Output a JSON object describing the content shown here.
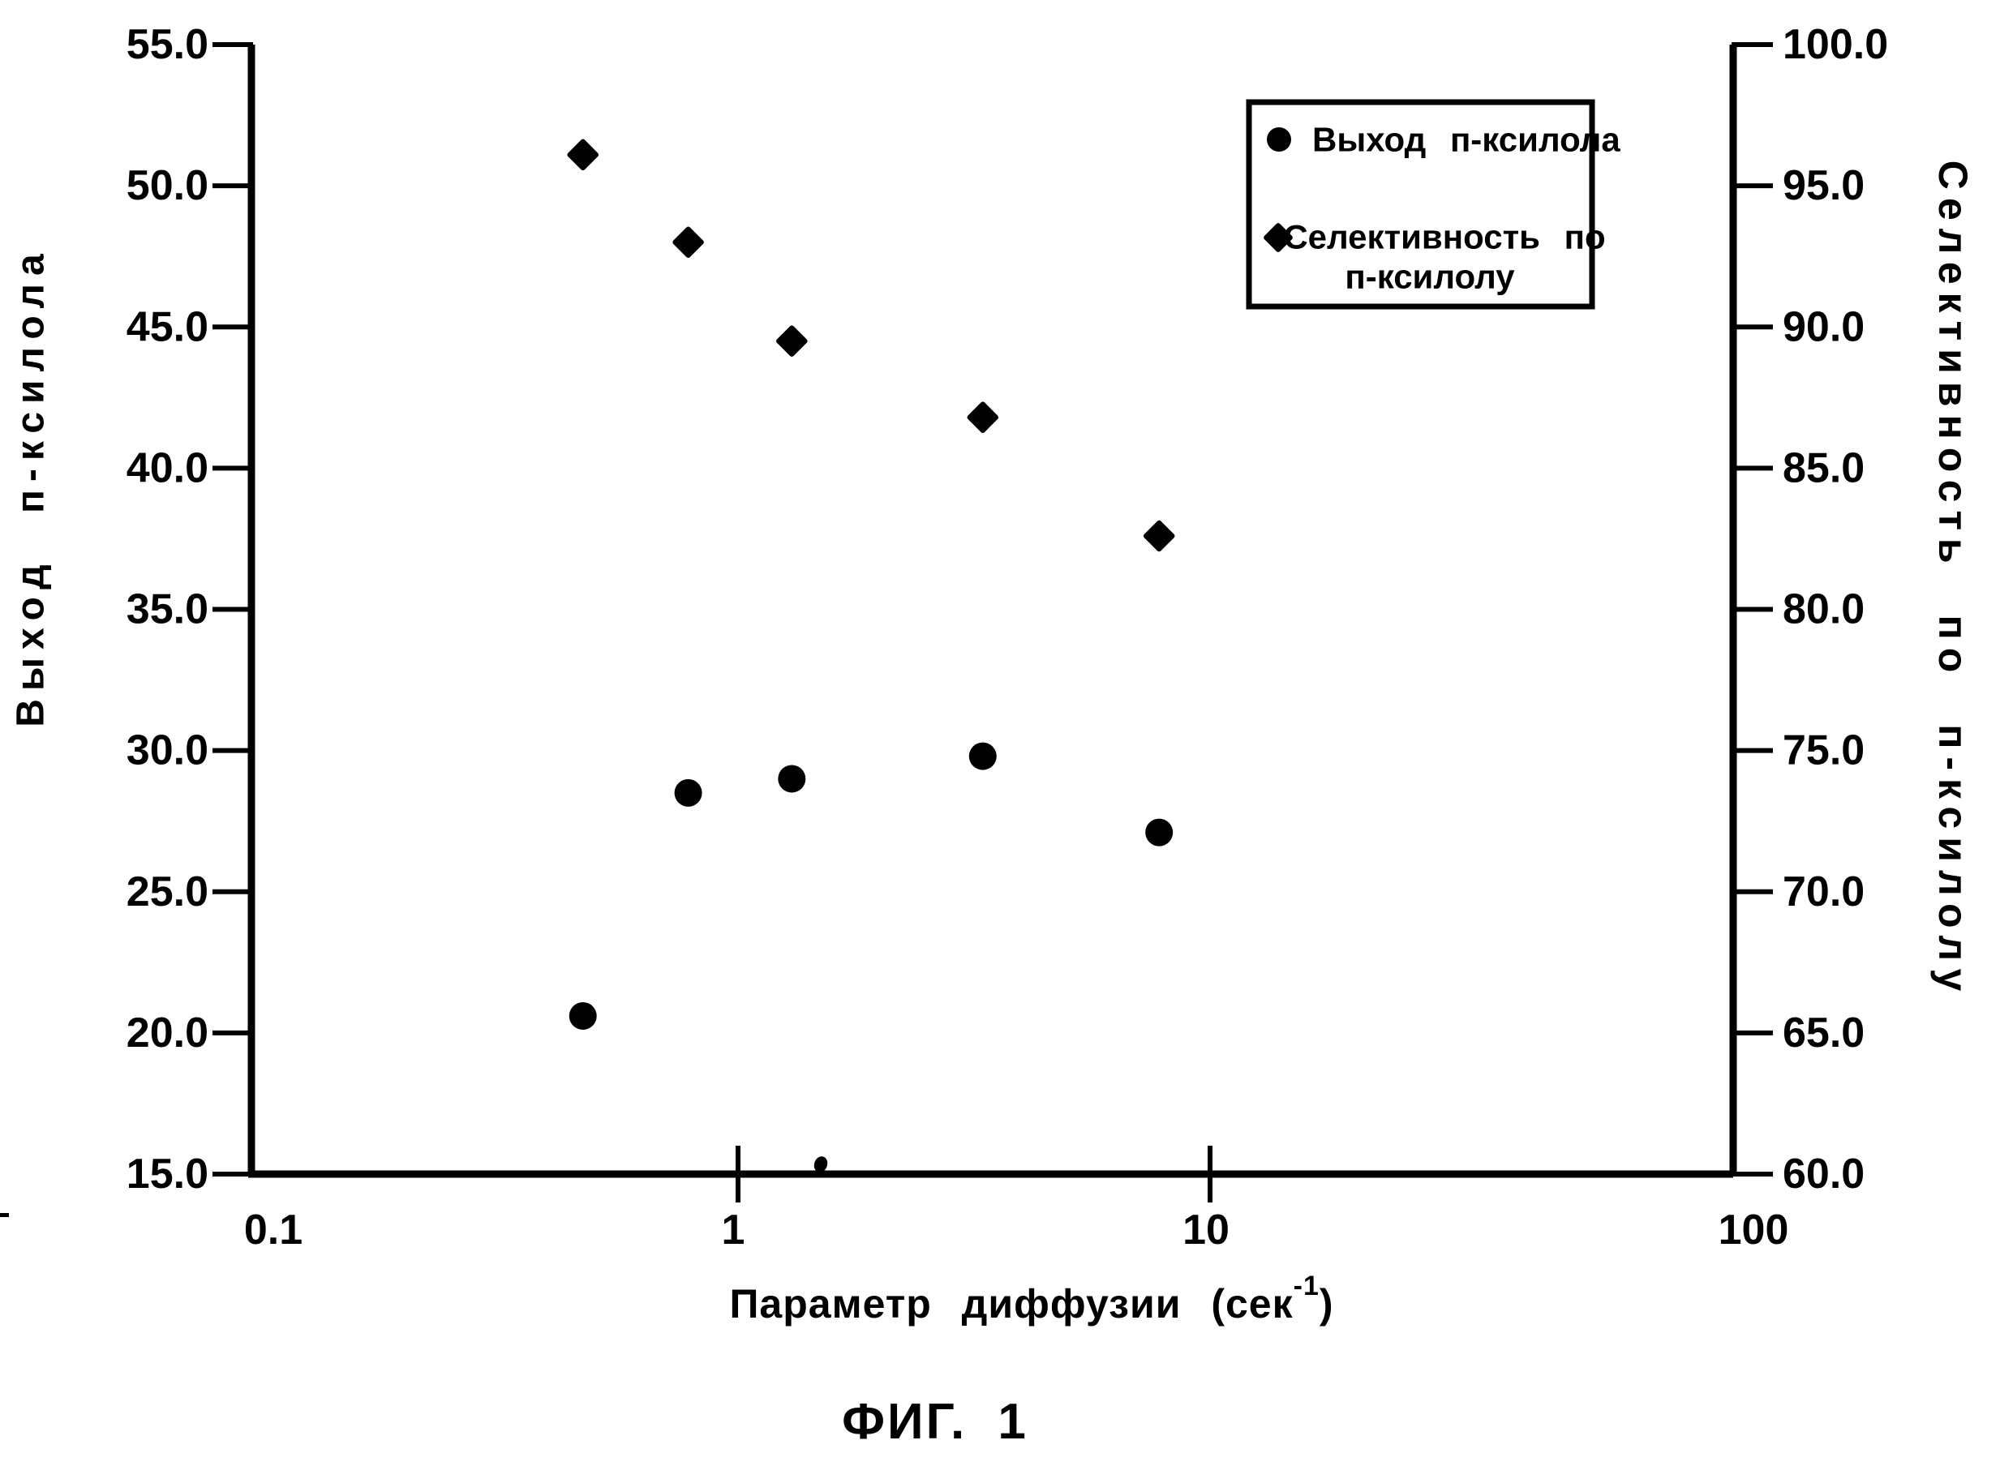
{
  "figure": {
    "caption": "ФИГ. 1",
    "background_color": "#ffffff",
    "ink_color": "#000000"
  },
  "chart_data": {
    "type": "scatter",
    "grid": false,
    "x_axis": {
      "title_prefix": "Параметр диффузии (сек",
      "title_superscript": "-1",
      "title_suffix": ")",
      "scale": "log",
      "range": [
        0.1,
        100
      ],
      "tick_values": [
        0.1,
        1,
        10,
        100
      ],
      "tick_labels": [
        "0.1",
        "1",
        "10",
        "100"
      ]
    },
    "y_axis_left": {
      "title": "Выход п-ксилола",
      "range": [
        15,
        55
      ],
      "tick_step": 5,
      "tick_labels": [
        "55.0",
        "50.0",
        "45.0",
        "40.0",
        "35.0",
        "30.0",
        "25.0",
        "20.0",
        "15.0"
      ]
    },
    "y_axis_right": {
      "title": "Селективность по п-ксилолу",
      "range": [
        60,
        100
      ],
      "tick_step": 5,
      "tick_labels": [
        "100.0",
        "95.0",
        "90.0",
        "85.0",
        "80.0",
        "75.0",
        "70.0",
        "65.0",
        "60.0"
      ]
    },
    "series": [
      {
        "name": "Выход п-ксилола",
        "marker": "circle",
        "axis": "left",
        "x": [
          0.48,
          0.79,
          1.3,
          3.3,
          7.8
        ],
        "y": [
          20.6,
          28.5,
          29.0,
          29.8,
          27.1
        ]
      },
      {
        "name": "Селективность по п-ксилолу",
        "marker": "diamond",
        "axis": "right",
        "x": [
          0.48,
          0.79,
          1.3,
          3.3,
          7.8
        ],
        "y": [
          96.1,
          93.0,
          89.5,
          86.8,
          82.6
        ]
      }
    ],
    "legend": {
      "position": "top-right",
      "items": [
        {
          "marker": "circle",
          "lines": [
            "Выход п-ксилола"
          ]
        },
        {
          "marker": "diamond",
          "lines": [
            "Селективность по",
            "п-ксилолу"
          ]
        }
      ]
    }
  }
}
